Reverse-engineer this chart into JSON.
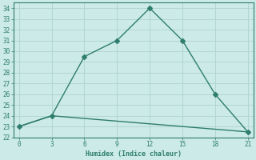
{
  "xlabel": "Humidex (Indice chaleur)",
  "line1_x": [
    0,
    3,
    6,
    9,
    12,
    15,
    18,
    21
  ],
  "line1_y": [
    23,
    24,
    29.5,
    31,
    34,
    31,
    26,
    22.5
  ],
  "line2_x": [
    0,
    3,
    21
  ],
  "line2_y": [
    23,
    24,
    22.5
  ],
  "line_color": "#2e7d6e",
  "bg_color": "#cceae7",
  "grid_color": "#afd4d0",
  "tick_color": "#2e7d6e",
  "xlim": [
    -0.5,
    21.5
  ],
  "ylim": [
    22,
    34.5
  ],
  "xticks": [
    0,
    3,
    6,
    9,
    12,
    15,
    18,
    21
  ],
  "yticks": [
    22,
    23,
    24,
    25,
    26,
    27,
    28,
    29,
    30,
    31,
    32,
    33,
    34
  ],
  "marker": "D",
  "markersize": 3,
  "linewidth": 1.0
}
